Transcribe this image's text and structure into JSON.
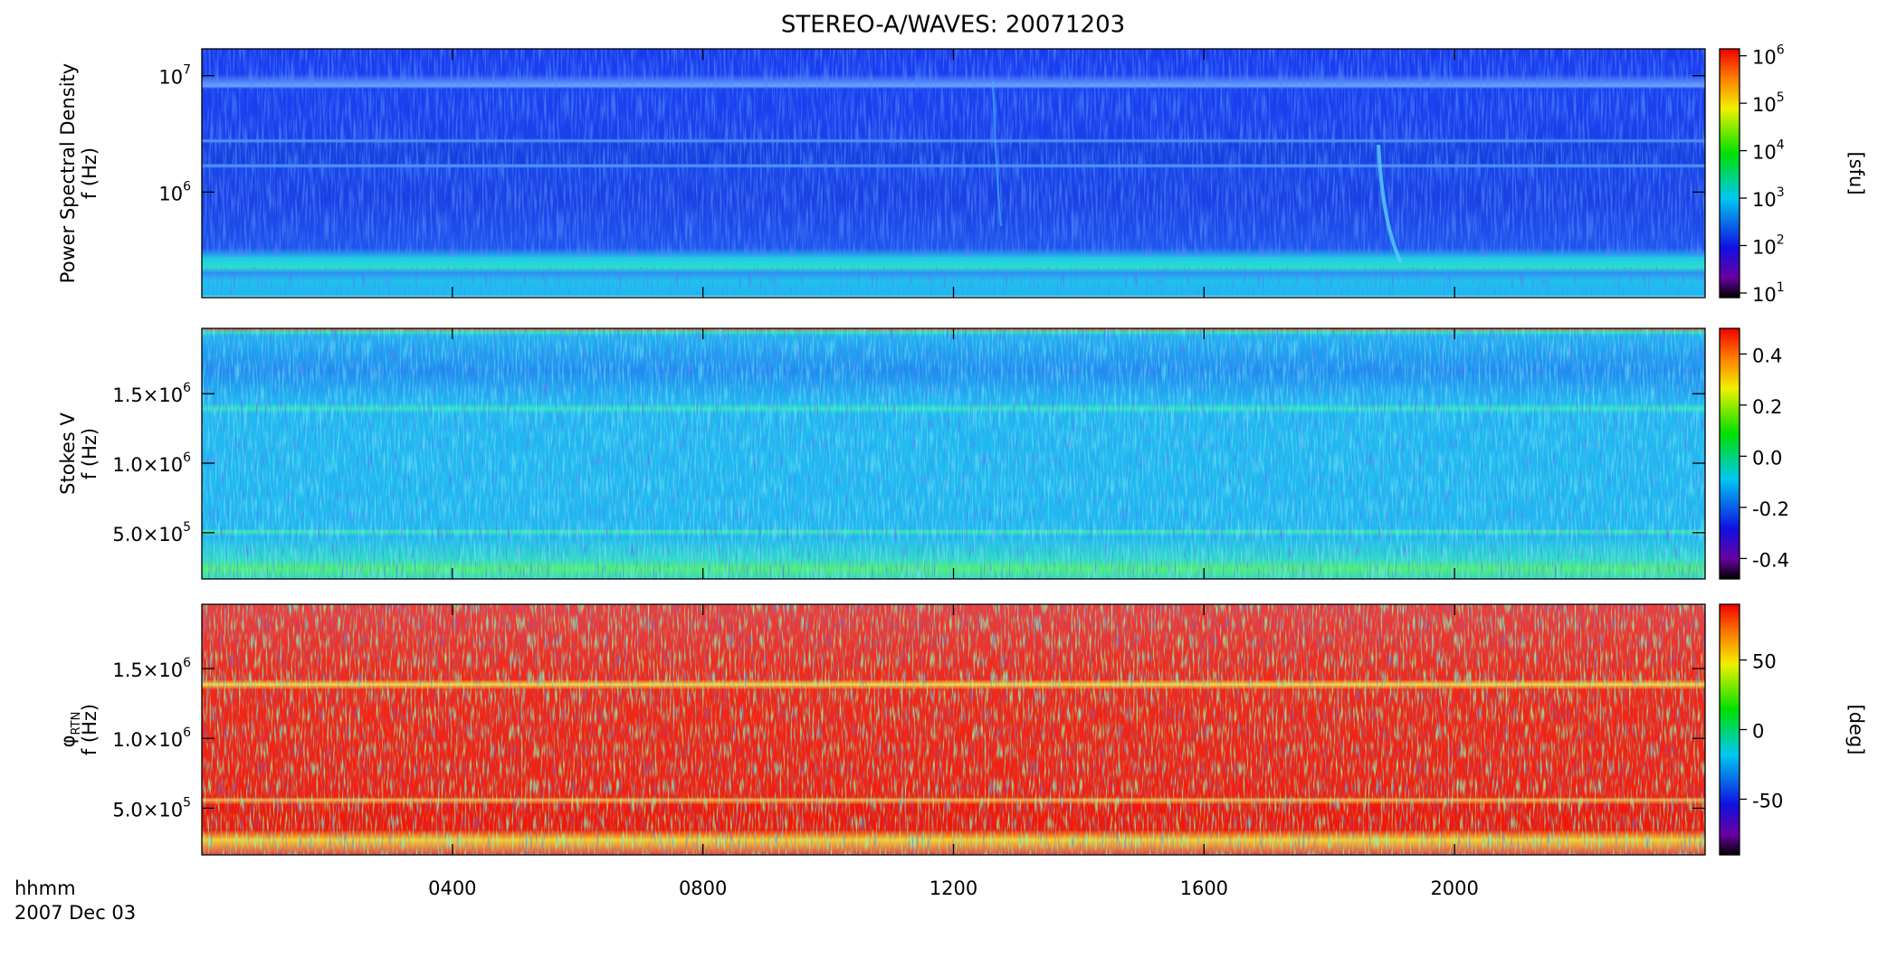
{
  "chart_data": [
    {
      "type": "heatmap",
      "title": "STEREO-A/WAVES: 20071203",
      "ylabel": [
        "Power Spectral Density",
        "f (Hz)"
      ],
      "ylog": true,
      "ylim": [
        124000,
        17000000
      ],
      "yticks": [
        {
          "value": 1000000,
          "label": "10",
          "sup": "6"
        },
        {
          "value": 10000000,
          "label": "10",
          "sup": "7"
        }
      ],
      "zlog": true,
      "zlim": [
        8,
        1400000
      ],
      "zlabel": "[sfu]",
      "zticks": [
        {
          "value": 10,
          "label": "10",
          "sup": "1"
        },
        {
          "value": 100,
          "label": "10",
          "sup": "2"
        },
        {
          "value": 1000,
          "label": "10",
          "sup": "3"
        },
        {
          "value": 10000,
          "label": "10",
          "sup": "4"
        },
        {
          "value": 100000,
          "label": "10",
          "sup": "5"
        },
        {
          "value": 1000000,
          "label": "10",
          "sup": "6"
        }
      ]
    },
    {
      "type": "heatmap",
      "ylabel": [
        "Stokes V",
        "f (Hz)"
      ],
      "ylog": false,
      "ylim": [
        167000,
        1970000
      ],
      "yticks": [
        {
          "value": 500000,
          "label": "5.0×10",
          "sup": "5"
        },
        {
          "value": 1000000,
          "label": "1.0×10",
          "sup": "6"
        },
        {
          "value": 1500000,
          "label": "1.5×10",
          "sup": "6"
        }
      ],
      "zlog": false,
      "zlim": [
        -0.48,
        0.5
      ],
      "zticks": [
        -0.4,
        -0.2,
        {
          "value": 0,
          "label": "0.0"
        },
        0.2,
        0.4
      ]
    },
    {
      "type": "heatmap",
      "ylabel": [
        "φ",
        "f (Hz)"
      ],
      "ylabel_sub": "RTN",
      "ylog": false,
      "ylim": [
        166000,
        1960000
      ],
      "yticks": [
        {
          "value": 500000,
          "label": "5.0×10",
          "sup": "5"
        },
        {
          "value": 1000000,
          "label": "1.0×10",
          "sup": "6"
        },
        {
          "value": 1500000,
          "label": "1.5×10",
          "sup": "6"
        }
      ],
      "zlog": false,
      "zlim": [
        -90,
        90
      ],
      "zlabel": "[deg]",
      "zticks": [
        -50,
        0,
        50
      ],
      "x_label": "hhmm",
      "date": "2007 Dec 03",
      "xlim": [
        0,
        24
      ],
      "xticks": [
        {
          "value": 4,
          "label": "0400"
        },
        {
          "value": 8,
          "label": "0800"
        },
        {
          "value": 12,
          "label": "1200"
        },
        {
          "value": 16,
          "label": "1600"
        },
        {
          "value": 20,
          "label": "2000"
        }
      ]
    }
  ]
}
